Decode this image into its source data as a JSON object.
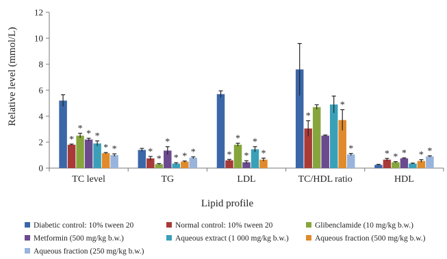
{
  "chart_data": {
    "type": "bar",
    "xlabel": "Lipid profile",
    "ylabel": "Relative level (mmol/L)",
    "ylim": [
      0,
      12
    ],
    "yticks": [
      0,
      2,
      4,
      6,
      8,
      10,
      12
    ],
    "grid": false,
    "legend_position": "bottom",
    "categories": [
      "TC level",
      "TG",
      "LDL",
      "TC/HDL ratio",
      "HDL"
    ],
    "series": [
      {
        "name": "Diabetic control: 10% tween 20",
        "color": "#3b67a8",
        "values": [
          5.2,
          1.4,
          5.7,
          7.6,
          0.25
        ],
        "errors": [
          0.45,
          0.12,
          0.25,
          2.0,
          0.04
        ],
        "significant": [
          false,
          false,
          false,
          false,
          false
        ]
      },
      {
        "name": "Normal control: 10% tween 20",
        "color": "#a83a38",
        "values": [
          1.8,
          0.75,
          0.6,
          3.05,
          0.65
        ],
        "errors": [
          0.05,
          0.15,
          0.07,
          0.6,
          0.1
        ],
        "significant": [
          true,
          true,
          true,
          true,
          true
        ]
      },
      {
        "name": "Glibenclamide (10 mg/kg b.w.)",
        "color": "#86a63d",
        "values": [
          2.5,
          0.3,
          1.8,
          4.7,
          0.45
        ],
        "errors": [
          0.18,
          0.05,
          0.12,
          0.18,
          0.05
        ],
        "significant": [
          true,
          true,
          true,
          false,
          true
        ]
      },
      {
        "name": "Metformin (500 mg/kg b.w.)",
        "color": "#6b4a8e",
        "values": [
          2.2,
          1.35,
          0.45,
          2.5,
          0.75
        ],
        "errors": [
          0.1,
          0.3,
          0.12,
          0.05,
          0.04
        ],
        "significant": [
          true,
          true,
          true,
          false,
          true
        ]
      },
      {
        "name": "Aqueous extract (1 000 mg/kg b.w.)",
        "color": "#3aa0b8",
        "values": [
          1.9,
          0.35,
          1.45,
          4.9,
          0.35
        ],
        "errors": [
          0.2,
          0.07,
          0.2,
          0.65,
          0.04
        ],
        "significant": [
          true,
          true,
          true,
          false,
          false
        ]
      },
      {
        "name": "Aqueous fraction (500 mg/kg b.w.)",
        "color": "#e08a2c",
        "values": [
          1.15,
          0.5,
          0.65,
          3.7,
          0.55
        ],
        "errors": [
          0.05,
          0.05,
          0.12,
          0.8,
          0.1
        ],
        "significant": [
          true,
          true,
          true,
          true,
          true
        ]
      },
      {
        "name": "Aqueous fraction (250 mg/kg b.w.)",
        "color": "#98b4dc",
        "values": [
          1.0,
          0.8,
          0.0,
          1.05,
          0.9
        ],
        "errors": [
          0.1,
          0.07,
          0.0,
          0.08,
          0.05
        ],
        "significant": [
          true,
          true,
          false,
          true,
          true
        ]
      }
    ],
    "significance_marker": "*"
  }
}
